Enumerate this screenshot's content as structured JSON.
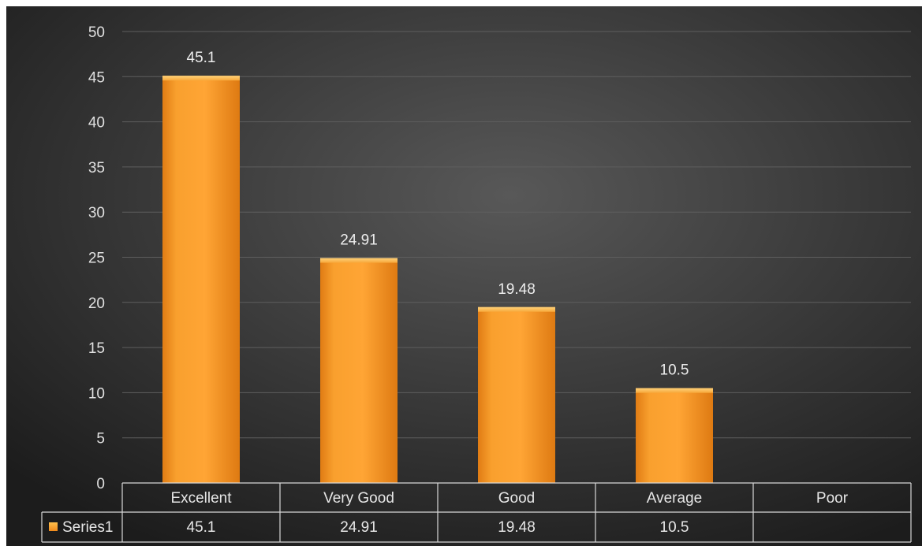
{
  "chart_data": {
    "type": "bar",
    "categories": [
      "Excellent",
      "Very Good",
      "Good",
      "Average",
      "Poor"
    ],
    "series": [
      {
        "name": "Series1",
        "values": [
          45.1,
          24.91,
          19.48,
          10.5,
          null
        ]
      }
    ],
    "data_labels": [
      "45.1",
      "24.91",
      "19.48",
      "10.5",
      ""
    ],
    "ylim": [
      0,
      50
    ],
    "yticks": [
      0,
      5,
      10,
      15,
      20,
      25,
      30,
      35,
      40,
      45,
      50
    ],
    "grid": true,
    "legend": "data-table",
    "data_table": true,
    "title": "",
    "xlabel": "",
    "ylabel": "",
    "colors": {
      "bar": "#f79a2a",
      "bar_light": "#ffc04d",
      "bar_dark": "#d67410",
      "background_center": "#555555",
      "background_edge": "#1e1e1e",
      "grid": "#5e5e5e",
      "table_line": "#d8d8d8",
      "text": "#e0e0e0"
    }
  }
}
